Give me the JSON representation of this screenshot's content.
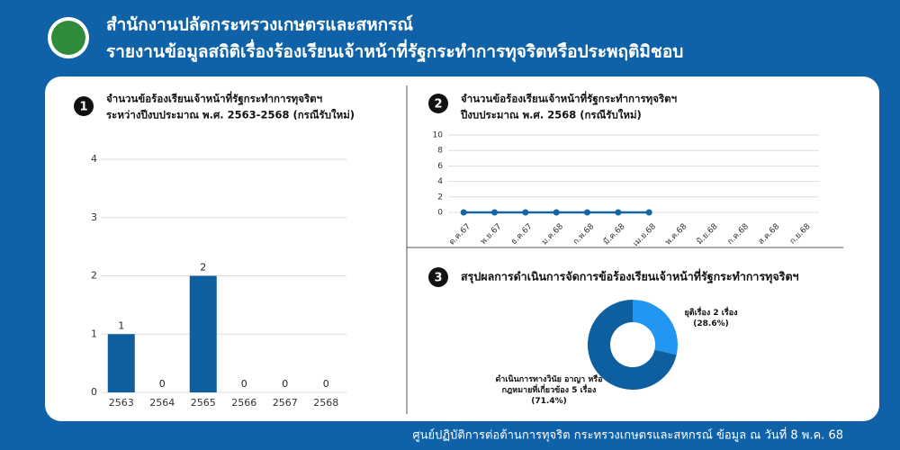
{
  "header": {
    "title": "สำนักงานปลัดกระทรวงเกษตรและสหกรณ์",
    "subtitle": "รายงานข้อมูลสถิติเรื่องร้องเรียนเจ้าหน้าที่รัฐกระทำการทุจริตหรือประพฤติมิชอบ"
  },
  "footer": "ศูนย์ปฏิบัติการต่อต้านการทุจริต กระทรวงเกษตรและสหกรณ์ ข้อมูล ณ วันที่ 8 พ.ค. 68",
  "chart_data": [
    {
      "type": "bar",
      "badge": "1",
      "title": "จำนวนข้อร้องเรียนเจ้าหน้าที่รัฐกระทำการทุจริตฯ",
      "subtitle": "ระหว่างปีงบประมาณ พ.ศ. 2563-2568 (กรณีรับใหม่)",
      "categories": [
        "2563",
        "2564",
        "2565",
        "2566",
        "2567",
        "2568"
      ],
      "values": [
        1,
        0,
        2,
        0,
        0,
        0
      ],
      "color": "#0f5f9e",
      "ylim": [
        0,
        4
      ],
      "yticks": [
        0,
        1,
        2,
        3,
        4
      ],
      "grid": true
    },
    {
      "type": "line",
      "badge": "2",
      "title": "จำนวนข้อร้องเรียนเจ้าหน้าที่รัฐกระทำการทุจริตฯ",
      "subtitle": "ปีงบประมาณ พ.ศ. 2568 (กรณีรับใหม่)",
      "categories": [
        "ต.ค.67",
        "พ.ย.67",
        "ธ.ค.67",
        "ม.ค.68",
        "ก.พ.68",
        "มี.ค.68",
        "เม.ย.68",
        "พ.ค.68",
        "มิ.ย.68",
        "ก.ค.68",
        "ส.ค.68",
        "ก.ย.68"
      ],
      "values": [
        0,
        0,
        0,
        0,
        0,
        0,
        0,
        null,
        null,
        null,
        null,
        null
      ],
      "color": "#1565a0",
      "ylim": [
        0,
        10
      ],
      "yticks": [
        0,
        2,
        4,
        6,
        8,
        10
      ],
      "grid": true
    },
    {
      "type": "pie",
      "badge": "3",
      "title": "สรุปผลการดำเนินการจัดการข้อร้องเรียนเจ้าหน้าที่รัฐกระทำการทุจริตฯ",
      "categories": [
        "ยุติเรื่อง 2 เรื่อง",
        "ดำเนินการทางวินัย อาญา หรือกฎหมายที่เกี่ยวข้อง 5 เรื่อง"
      ],
      "values": [
        28.6,
        71.4
      ],
      "value_labels": [
        "(28.6%)",
        "(71.4%)"
      ],
      "colors": [
        "#2196f3",
        "#0d5fa0"
      ]
    }
  ]
}
